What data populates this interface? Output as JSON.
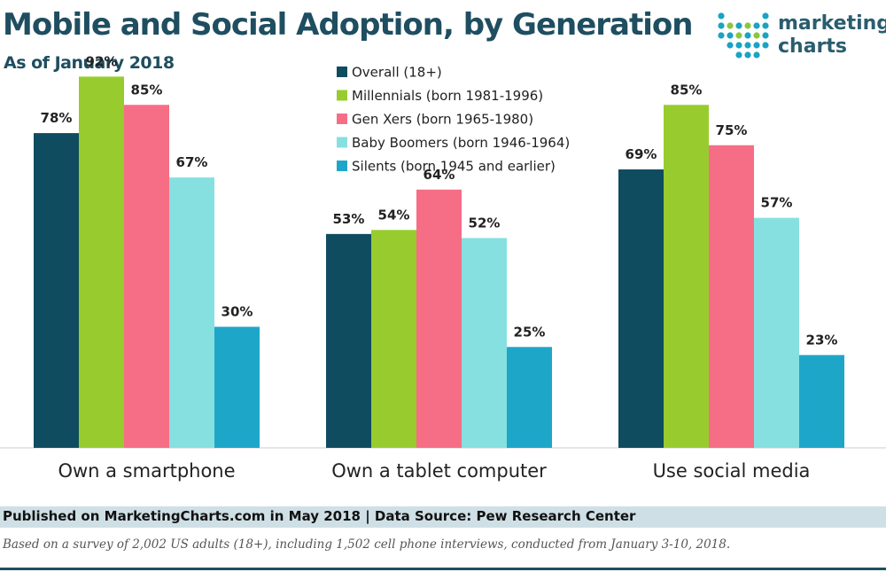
{
  "header": {
    "title": "Mobile and Social Adoption, by Generation",
    "subtitle": "As of January 2018"
  },
  "logo": {
    "line1": "marketing",
    "line2": "charts",
    "dot_colors": [
      "#1aa3c4",
      "#8cc63f"
    ]
  },
  "chart_data": {
    "type": "bar",
    "categories": [
      "Own a smartphone",
      "Own a tablet computer",
      "Use social media"
    ],
    "series": [
      {
        "name": "Overall (18+)",
        "color": "#0f4c5f",
        "values": [
          78,
          53,
          69
        ]
      },
      {
        "name": "Millennials (born 1981-1996)",
        "color": "#98cc2e",
        "values": [
          92,
          54,
          85
        ]
      },
      {
        "name": "Gen Xers (born 1965-1980)",
        "color": "#f56e86",
        "values": [
          85,
          64,
          75
        ]
      },
      {
        "name": "Baby Boomers (born 1946-1964)",
        "color": "#86e0e0",
        "values": [
          67,
          52,
          57
        ]
      },
      {
        "name": "Silents (born 1945 and earlier)",
        "color": "#1ea6c9",
        "values": [
          30,
          25,
          23
        ]
      }
    ],
    "value_suffix": "%",
    "ylim": [
      0,
      100
    ],
    "legend_position": "top-center",
    "grid": false
  },
  "footer": {
    "published": "Published on MarketingCharts.com in May 2018 | Data Source: Pew Research Center",
    "note": "Based on a survey of 2,002 US adults (18+), including 1,502 cell phone interviews, conducted from January 3-10, 2018."
  }
}
